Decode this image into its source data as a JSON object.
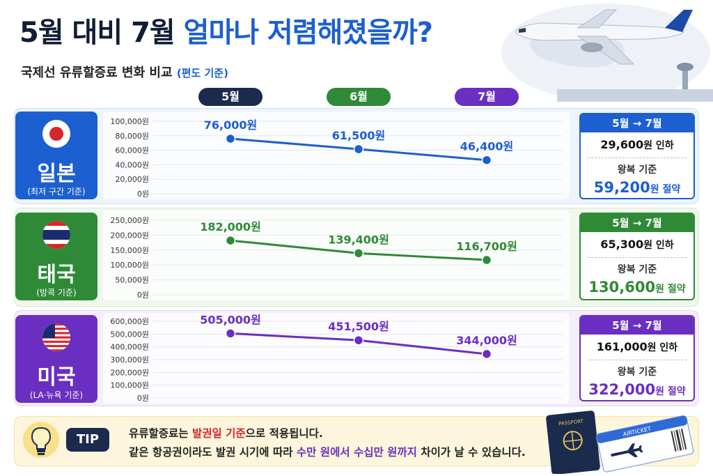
{
  "title": {
    "part1": "5월 대비 7월",
    "part2": "얼마나 저렴해졌을까?"
  },
  "subtitle": {
    "main": "국제선 유류할증료 변화 비교",
    "note": "(편도 기준)"
  },
  "months": [
    "5월",
    "6월",
    "7월"
  ],
  "colors": {
    "japan": "#1c5fd0",
    "thailand": "#2e8a37",
    "usa": "#6a2fc0",
    "navy": "#1b2b4e"
  },
  "countries": [
    {
      "name": "일본",
      "note": "(최저 구간 기준)",
      "summary_head": "5월 → 7월",
      "reduction": "29,600",
      "reduction_suffix": "원 인하",
      "basis": "왕복 기준",
      "save_amount": "59,200",
      "save_suffix": "원 절약"
    },
    {
      "name": "태국",
      "note": "(방콕 기준)",
      "summary_head": "5월 → 7월",
      "reduction": "65,300",
      "reduction_suffix": "원 인하",
      "basis": "왕복 기준",
      "save_amount": "130,600",
      "save_suffix": "원 절약"
    },
    {
      "name": "미국",
      "note": "(LA·뉴욕 기준)",
      "summary_head": "5월 → 7월",
      "reduction": "161,000",
      "reduction_suffix": "원 인하",
      "basis": "왕복 기준",
      "save_amount": "322,000",
      "save_suffix": "원 절약"
    }
  ],
  "chart_data": [
    {
      "type": "line",
      "series": [
        {
          "name": "일본",
          "values": [
            76000,
            61500,
            46400
          ]
        }
      ],
      "x": [
        "5월",
        "6월",
        "7월"
      ],
      "value_labels": [
        "76,000원",
        "61,500원",
        "46,400원"
      ],
      "ylim": [
        0,
        100000
      ],
      "yticks": [
        0,
        20000,
        40000,
        60000,
        80000,
        100000
      ],
      "ytick_labels": [
        "0원",
        "20,000원",
        "40,000원",
        "60,000원",
        "80,000원",
        "100,000원"
      ],
      "grid": true
    },
    {
      "type": "line",
      "series": [
        {
          "name": "태국",
          "values": [
            182000,
            139400,
            116700
          ]
        }
      ],
      "x": [
        "5월",
        "6월",
        "7월"
      ],
      "value_labels": [
        "182,000원",
        "139,400원",
        "116,700원"
      ],
      "ylim": [
        0,
        250000
      ],
      "yticks": [
        0,
        50000,
        100000,
        150000,
        200000,
        250000
      ],
      "ytick_labels": [
        "0원",
        "50,000원",
        "100,000원",
        "150,000원",
        "200,000원",
        "250,000원"
      ],
      "grid": true
    },
    {
      "type": "line",
      "series": [
        {
          "name": "미국",
          "values": [
            505000,
            451500,
            344000
          ]
        }
      ],
      "x": [
        "5월",
        "6월",
        "7월"
      ],
      "value_labels": [
        "505,000원",
        "451,500원",
        "344,000원"
      ],
      "ylim": [
        0,
        600000
      ],
      "yticks": [
        0,
        100000,
        200000,
        300000,
        400000,
        500000,
        600000
      ],
      "ytick_labels": [
        "0원",
        "100,000원",
        "200,000원",
        "300,000원",
        "400,000원",
        "500,000원",
        "600,000원"
      ],
      "grid": true
    }
  ],
  "tip": {
    "badge": "TIP",
    "line1_a": "유류할증료는 ",
    "line1_b": "발권일 기준",
    "line1_c": "으로 적용됩니다.",
    "line2_a": "같은 항공권이라도 발권 시기에 따라 ",
    "line2_b": "수만 원에서 수십만 원까지",
    "line2_c": " 차이가 날 수 있습니다."
  },
  "ticket": {
    "passport": "PASSPORT",
    "airticket": "AIRTICKET"
  }
}
